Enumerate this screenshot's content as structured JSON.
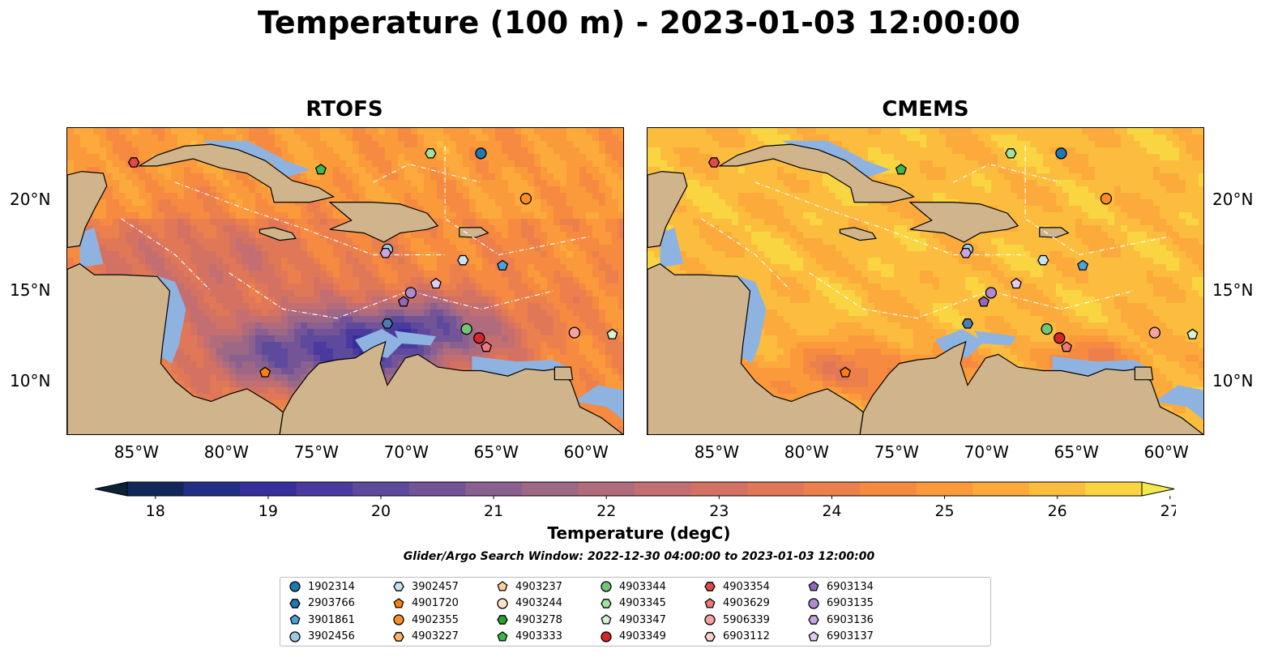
{
  "title": "Temperature (100 m) - 2023-01-03 12:00:00",
  "panels": [
    {
      "title": "RTOFS",
      "palette": "rtofs"
    },
    {
      "title": "CMEMS",
      "palette": "cmems"
    }
  ],
  "lon_ticks": [
    "85°W",
    "80°W",
    "75°W",
    "70°W",
    "65°W",
    "60°W"
  ],
  "lat_ticks": [
    "20°N",
    "15°N",
    "10°N"
  ],
  "colorbar": {
    "ticks": [
      "18",
      "19",
      "20",
      "21",
      "22",
      "23",
      "24",
      "25",
      "26",
      "27"
    ],
    "label": "Temperature (degC)",
    "range": [
      17.75,
      27.25
    ],
    "colors": [
      "#0d2035",
      "#13285a",
      "#212f85",
      "#342f9a",
      "#4a3aa0",
      "#5e4a9c",
      "#735496",
      "#89608f",
      "#9c6886",
      "#b06b7c",
      "#c36e70",
      "#d37262",
      "#e07858",
      "#ec804c",
      "#f68a41",
      "#fb9a3a",
      "#fcaa3c",
      "#fcbd3e",
      "#fad542",
      "#f2ea4a"
    ]
  },
  "search_window": "Glider/Argo Search Window: 2022-12-30 04:00:00 to 2023-01-03 12:00:00",
  "chart_data": [
    {
      "type": "heatmap",
      "title": "RTOFS",
      "variable": "Temperature (100 m)",
      "units": "degC",
      "lon_range": [
        -89,
        -58
      ],
      "lat_range": [
        7,
        24
      ],
      "color_range": [
        18,
        27
      ]
    },
    {
      "type": "heatmap",
      "title": "CMEMS",
      "variable": "Temperature (100 m)",
      "units": "degC",
      "lon_range": [
        -89,
        -58
      ],
      "lat_range": [
        7,
        24
      ],
      "color_range": [
        18,
        27
      ]
    }
  ],
  "platforms": [
    {
      "id": "1902314",
      "color": "#1f77b4",
      "marker": "circle",
      "lon": -66.0,
      "lat": 22.6
    },
    {
      "id": "2903766",
      "color": "#1f77b4",
      "marker": "hexagon",
      "lon": null,
      "lat": null
    },
    {
      "id": "3901861",
      "color": "#4aa3df",
      "marker": "pentagon",
      "lon": -64.8,
      "lat": 16.4
    },
    {
      "id": "3902456",
      "color": "#9ecae1",
      "marker": "circle",
      "lon": -71.2,
      "lat": 17.3
    },
    {
      "id": "3902457",
      "color": "#c6e2f7",
      "marker": "hexagon",
      "lon": -67.0,
      "lat": 16.7
    },
    {
      "id": "4901720",
      "color": "#ff7f0e",
      "marker": "pentagon",
      "lon": -78.0,
      "lat": 10.5
    },
    {
      "id": "4902355",
      "color": "#ff8c2a",
      "marker": "circle",
      "lon": -63.5,
      "lat": 20.1
    },
    {
      "id": "4903227",
      "color": "#ffb366",
      "marker": "hexagon",
      "lon": null,
      "lat": null
    },
    {
      "id": "4903237",
      "color": "#ffd09b",
      "marker": "pentagon",
      "lon": null,
      "lat": null
    },
    {
      "id": "4903244",
      "color": "#ffe3c8",
      "marker": "circle",
      "lon": null,
      "lat": null
    },
    {
      "id": "4903278",
      "color": "#2ca02c",
      "marker": "hexagon",
      "lon": null,
      "lat": null
    },
    {
      "id": "4903333",
      "color": "#3cb84a",
      "marker": "pentagon",
      "lon": -74.9,
      "lat": 21.7
    },
    {
      "id": "4903344",
      "color": "#74c476",
      "marker": "circle",
      "lon": -66.8,
      "lat": 12.9
    },
    {
      "id": "4903345",
      "color": "#a1e3a1",
      "marker": "hexagon",
      "lon": -68.8,
      "lat": 22.6
    },
    {
      "id": "4903347",
      "color": "#d4f5d0",
      "marker": "pentagon",
      "lon": -58.7,
      "lat": 12.6
    },
    {
      "id": "4903349",
      "color": "#d62728",
      "marker": "circle",
      "lon": -66.1,
      "lat": 12.4
    },
    {
      "id": "4903354",
      "color": "#e04a4a",
      "marker": "hexagon",
      "lon": -85.3,
      "lat": 22.1
    },
    {
      "id": "4903629",
      "color": "#f0787a",
      "marker": "pentagon",
      "lon": -65.7,
      "lat": 11.9
    },
    {
      "id": "5906339",
      "color": "#f4a3a0",
      "marker": "circle",
      "lon": -60.8,
      "lat": 12.7
    },
    {
      "id": "6903112",
      "color": "#fad1cf",
      "marker": "hexagon",
      "lon": null,
      "lat": null
    },
    {
      "id": "6903134",
      "color": "#9467bd",
      "marker": "pentagon",
      "lon": -70.3,
      "lat": 14.4
    },
    {
      "id": "6903135",
      "color": "#b08ad0",
      "marker": "circle",
      "lon": -69.9,
      "lat": 14.9
    },
    {
      "id": "6903136",
      "color": "#c7a6e2",
      "marker": "hexagon",
      "lon": -71.3,
      "lat": 17.1
    },
    {
      "id": "6903137",
      "color": "#e2ccf2",
      "marker": "pentagon",
      "lon": -68.5,
      "lat": 15.4
    }
  ],
  "extra_markers": [
    {
      "marker": "hexagon",
      "color": "#4a7fb5",
      "lon": -71.2,
      "lat": 13.2
    }
  ]
}
